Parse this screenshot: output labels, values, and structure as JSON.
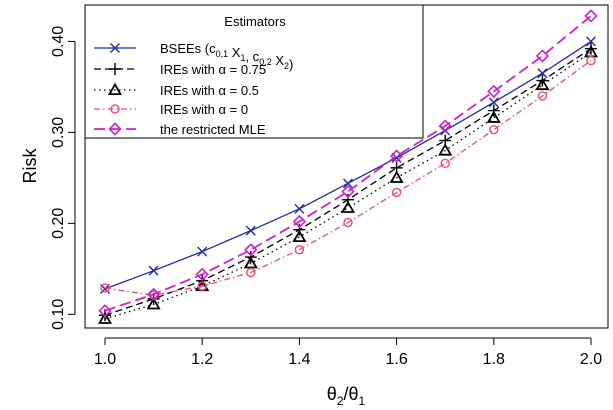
{
  "chart_data": {
    "type": "line",
    "xlabel": "θ2/θ1",
    "ylabel": "Risk",
    "xlim": [
      1.0,
      2.0
    ],
    "ylim": [
      0.085,
      0.44
    ],
    "xticks": [
      "1.0",
      "1.2",
      "1.4",
      "1.6",
      "1.8",
      "2.0"
    ],
    "yticks": [
      "0.10",
      "0.20",
      "0.30",
      "0.40"
    ],
    "grid": false,
    "legend": {
      "title": "Estimators",
      "placement": "top-left",
      "entries": [
        "BSEEs (c0,1 X1, c0,2 X2)",
        "IREs with α = 0.75",
        "IREs with α = 0.5",
        "IREs with α = 0",
        "the restricted MLE"
      ]
    },
    "x": [
      1.0,
      1.1,
      1.2,
      1.3,
      1.4,
      1.5,
      1.6,
      1.7,
      1.8,
      1.9,
      2.0
    ],
    "series": [
      {
        "name": "BSEEs (c0,1 X1, c0,2 X2)",
        "color": "#1f2aa0",
        "marker": "x",
        "dash": "solid",
        "values": [
          0.128,
          0.148,
          0.169,
          0.192,
          0.216,
          0.244,
          0.272,
          0.302,
          0.333,
          0.365,
          0.4
        ]
      },
      {
        "name": "IREs with α = 0.75",
        "color": "#000000",
        "marker": "plus",
        "dash": "dashed",
        "values": [
          0.099,
          0.117,
          0.137,
          0.163,
          0.193,
          0.226,
          0.261,
          0.291,
          0.324,
          0.357,
          0.392
        ]
      },
      {
        "name": "IREs with α = 0.5",
        "color": "#000000",
        "marker": "triangle",
        "dash": "dotted",
        "values": [
          0.095,
          0.111,
          0.131,
          0.156,
          0.185,
          0.217,
          0.25,
          0.28,
          0.316,
          0.352,
          0.388
        ]
      },
      {
        "name": "IREs with α = 0",
        "color": "#e8506a",
        "marker": "circle",
        "dash": "dashdot",
        "values": [
          0.129,
          0.121,
          0.131,
          0.146,
          0.171,
          0.201,
          0.234,
          0.266,
          0.303,
          0.34,
          0.379
        ]
      },
      {
        "name": "the restricted MLE",
        "color": "#cc22cc",
        "marker": "diamond",
        "dash": "longdash",
        "values": [
          0.104,
          0.122,
          0.144,
          0.171,
          0.202,
          0.235,
          0.274,
          0.307,
          0.345,
          0.384,
          0.428
        ]
      }
    ]
  }
}
